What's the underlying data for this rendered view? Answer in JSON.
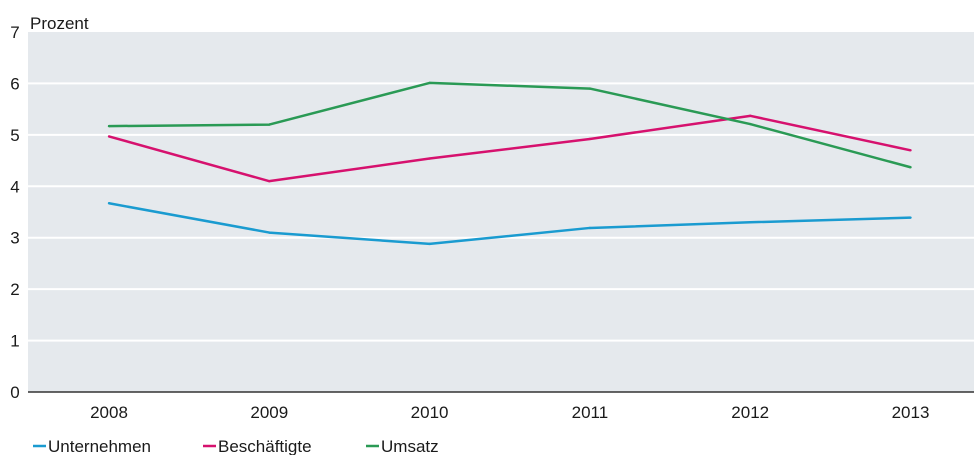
{
  "chart_data": {
    "type": "line",
    "unit_label": "Prozent",
    "categories": [
      "2008",
      "2009",
      "2010",
      "2011",
      "2012",
      "2013"
    ],
    "ylim": [
      0,
      7
    ],
    "yticks": [
      "0",
      "1",
      "2",
      "3",
      "4",
      "5",
      "6",
      "7"
    ],
    "grid": true,
    "legend_position": "bottom-left",
    "background_color": "#e5e9ed",
    "series": [
      {
        "name": "Unternehmen",
        "color": "#1a9bd0",
        "values": [
          3.67,
          3.1,
          2.88,
          3.19,
          3.3,
          3.39
        ]
      },
      {
        "name": "Beschäftigte",
        "color": "#d6116e",
        "values": [
          4.97,
          4.1,
          4.54,
          4.92,
          5.37,
          4.7
        ]
      },
      {
        "name": "Umsatz",
        "color": "#2a9a55",
        "values": [
          5.17,
          5.2,
          6.01,
          5.9,
          5.21,
          4.37
        ]
      }
    ]
  }
}
